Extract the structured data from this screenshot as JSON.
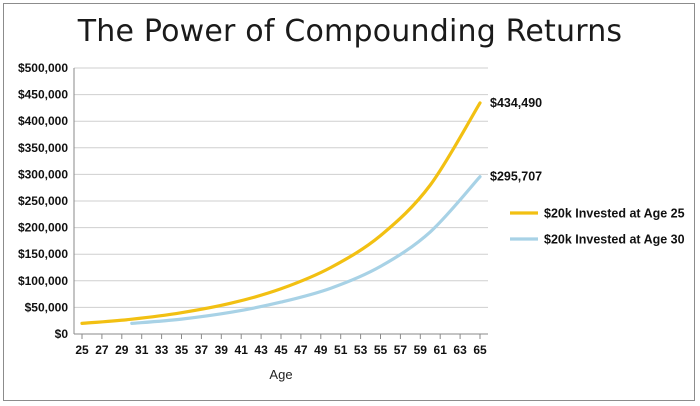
{
  "chart_data": {
    "type": "line",
    "title": "The Power of Compounding Returns",
    "xlabel": "Age",
    "ylabel": "",
    "xlim": [
      25,
      65
    ],
    "ylim": [
      0,
      500000
    ],
    "y_ticks": [
      "$0",
      "$50,000",
      "$100,000",
      "$150,000",
      "$200,000",
      "$250,000",
      "$300,000",
      "$350,000",
      "$400,000",
      "$450,000",
      "$500,000"
    ],
    "x_ticks": [
      "25",
      "27",
      "29",
      "31",
      "33",
      "35",
      "37",
      "39",
      "41",
      "43",
      "45",
      "47",
      "49",
      "51",
      "53",
      "55",
      "57",
      "59",
      "61",
      "63",
      "65"
    ],
    "grid": "horizontal",
    "legend_position": "right",
    "series": [
      {
        "name": "$20k Invested at Age 25",
        "color": "#f2c012",
        "end_label": "$434,490",
        "x": [
          25,
          30,
          35,
          40,
          45,
          50,
          55,
          60,
          65
        ],
        "values": [
          20000,
          27800,
          40000,
          58000,
          85000,
          125000,
          185000,
          280000,
          434490
        ]
      },
      {
        "name": "$20k Invested at Age 30",
        "color": "#a8d2e6",
        "end_label": "$295,707",
        "x": [
          30,
          35,
          40,
          45,
          50,
          55,
          60,
          65
        ],
        "values": [
          20000,
          28000,
          41000,
          60000,
          86000,
          127000,
          192000,
          295707
        ]
      }
    ]
  }
}
